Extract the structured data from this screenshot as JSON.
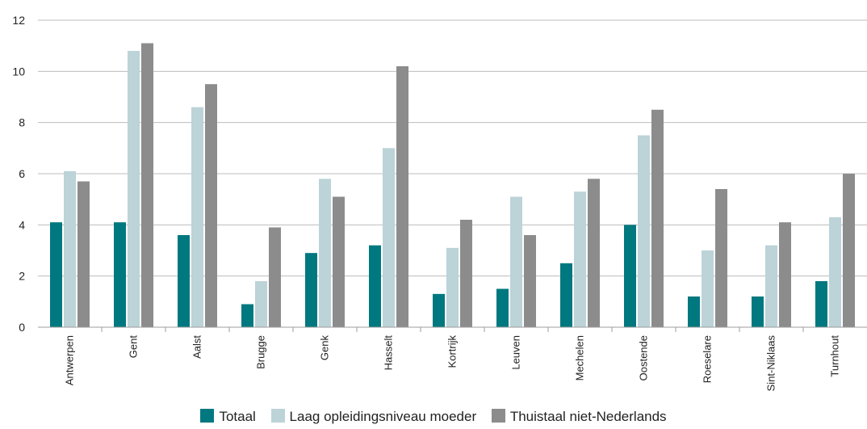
{
  "chart_data": {
    "type": "bar",
    "categories": [
      "Antwerpen",
      "Gent",
      "Aalst",
      "Brugge",
      "Genk",
      "Hasselt",
      "Kortrijk",
      "Leuven",
      "Mechelen",
      "Oostende",
      "Roeselare",
      "Sint-Niklaas",
      "Turnhout"
    ],
    "series": [
      {
        "name": "Totaal",
        "color": "#00787f",
        "values": [
          4.1,
          4.1,
          3.6,
          0.9,
          2.9,
          3.2,
          1.3,
          1.5,
          2.5,
          4.0,
          1.2,
          1.2,
          1.8
        ]
      },
      {
        "name": "Laag opleidingsniveau moeder",
        "color": "#bcd3d8",
        "values": [
          6.1,
          10.8,
          8.6,
          1.8,
          5.8,
          7.0,
          3.1,
          5.1,
          5.3,
          7.5,
          3.0,
          3.2,
          4.3
        ]
      },
      {
        "name": "Thuistaal niet-Nederlands",
        "color": "#8c8c8c",
        "values": [
          5.7,
          11.1,
          9.5,
          3.9,
          5.1,
          10.2,
          4.2,
          3.6,
          5.8,
          8.5,
          5.4,
          4.1,
          6.0
        ]
      }
    ],
    "yticks": [
      0,
      2,
      4,
      6,
      8,
      10,
      12
    ],
    "ylim": [
      0,
      12
    ],
    "grid": true,
    "legend_position": "bottom"
  }
}
